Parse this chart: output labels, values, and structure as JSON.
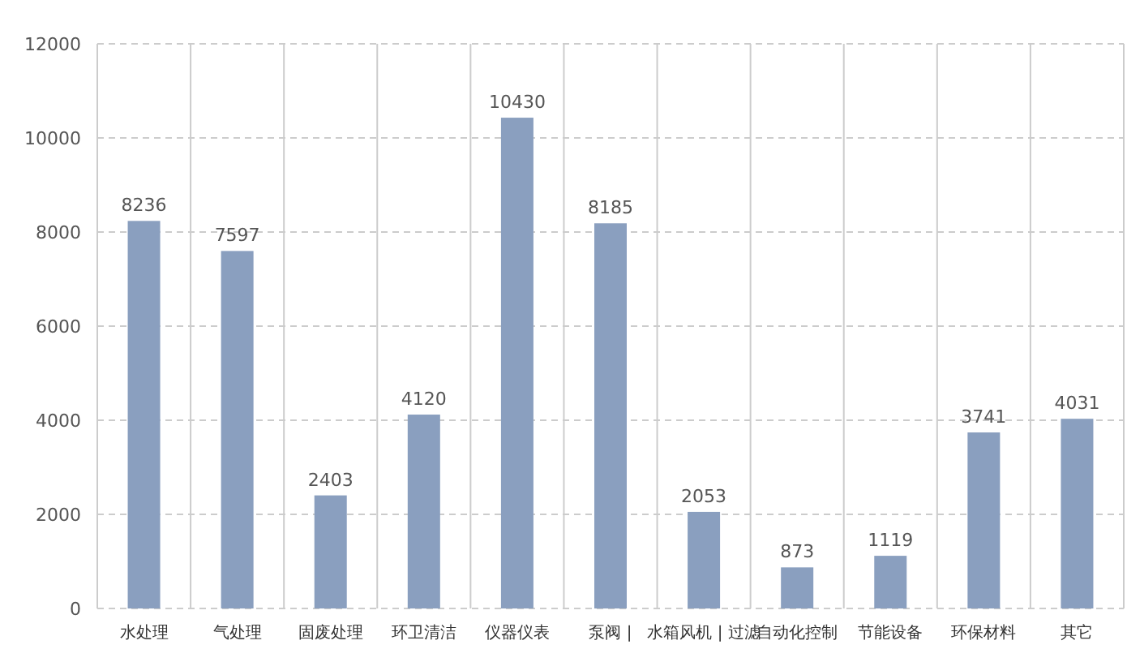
{
  "chart_data": {
    "type": "bar",
    "categories": [
      "水处理",
      "气处理",
      "固废处理",
      "环卫清洁",
      "仪器仪表",
      "泵阀 |",
      "水箱风机 | 过滤",
      "自动化控制",
      "节能设备",
      "环保材料",
      "其它"
    ],
    "values": [
      8236,
      7597,
      2403,
      4120,
      10430,
      8185,
      2053,
      873,
      1119,
      3741,
      4031
    ],
    "color": "#8a9fbf",
    "ylim": [
      0,
      12000
    ],
    "yticks": [
      0,
      2000,
      4000,
      6000,
      8000,
      10000,
      12000
    ],
    "grid": true,
    "data_labels": true
  }
}
